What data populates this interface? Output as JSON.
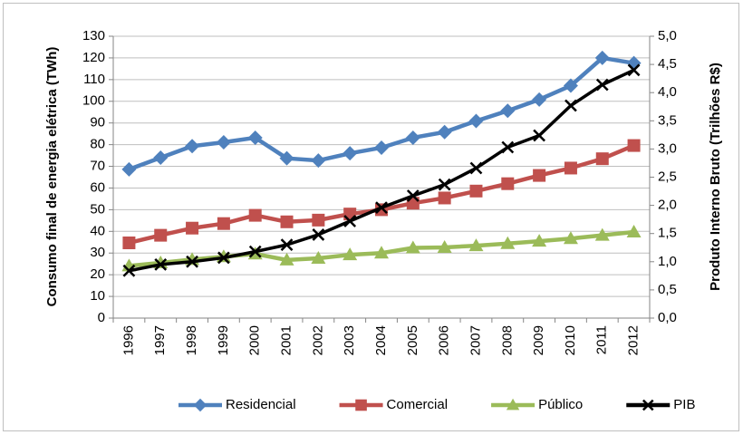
{
  "chart_data": {
    "type": "line",
    "y_label": "Consumo final de energia elétrica (TWh)",
    "y2_label": "Produto Interno Bruto (Trilhões R$)",
    "categories": [
      "1996",
      "1997",
      "1998",
      "1999",
      "2000",
      "2001",
      "2002",
      "2003",
      "2004",
      "2005",
      "2006",
      "2007",
      "2008",
      "2009",
      "2010",
      "2011",
      "2012"
    ],
    "ylim": [
      0,
      130
    ],
    "yticks": [
      0,
      10,
      20,
      30,
      40,
      50,
      60,
      70,
      80,
      90,
      100,
      110,
      120,
      130
    ],
    "y2lim": [
      0,
      5
    ],
    "y2ticks": [
      {
        "value": 0,
        "label": "0,0"
      },
      {
        "value": 0.5,
        "label": "0,5"
      },
      {
        "value": 1,
        "label": "1,0"
      },
      {
        "value": 1.5,
        "label": "1,5"
      },
      {
        "value": 2,
        "label": "2,0"
      },
      {
        "value": 2.5,
        "label": "2,5"
      },
      {
        "value": 3,
        "label": "3,0"
      },
      {
        "value": 3.5,
        "label": "3,5"
      },
      {
        "value": 4,
        "label": "4,0"
      },
      {
        "value": 4.5,
        "label": "4,5"
      },
      {
        "value": 5,
        "label": "5,0"
      }
    ],
    "grid": true,
    "legend": "bottom",
    "series": [
      {
        "name": "Residencial",
        "color": "#4f81bd",
        "marker": "diamond",
        "values": [
          68.6,
          74,
          79.3,
          81.1,
          83.2,
          73.7,
          72.7,
          76,
          78.6,
          83.2,
          85.8,
          90.9,
          95.6,
          100.8,
          107.2,
          120,
          117.6
        ]
      },
      {
        "name": "Comercial",
        "color": "#c0504d",
        "marker": "square",
        "values": [
          34.7,
          38.2,
          41.5,
          43.6,
          47.4,
          44.4,
          45.2,
          48,
          50,
          53,
          55.4,
          58.6,
          62,
          65.8,
          69.2,
          73.5,
          79.6
        ]
      },
      {
        "name": "Público",
        "color": "#9bbb59",
        "marker": "triangle",
        "values": [
          24.1,
          25.5,
          27,
          28.3,
          29.6,
          26.8,
          27.6,
          29.2,
          30,
          32.4,
          32.6,
          33.4,
          34.4,
          35.5,
          36.7,
          38.2,
          39.7
        ]
      },
      {
        "name": "PIB",
        "color": "#000000",
        "marker": "x",
        "axis": "y2",
        "values": [
          0.84,
          0.95,
          1.0,
          1.07,
          1.18,
          1.3,
          1.48,
          1.72,
          1.96,
          2.17,
          2.37,
          2.66,
          3.03,
          3.24,
          3.77,
          4.14,
          4.4
        ]
      }
    ]
  }
}
